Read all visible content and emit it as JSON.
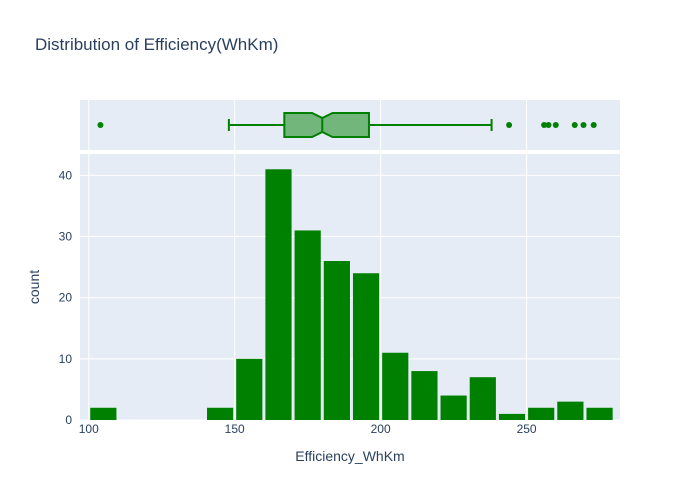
{
  "chart_data": {
    "title": "Distribution of Efficiency(WhKm)",
    "xlabel": "Efficiency_WhKm",
    "ylabel": "count",
    "xlim": [
      97,
      282
    ],
    "ylim": [
      0,
      43.5
    ],
    "grid": true,
    "histogram": {
      "type": "bar",
      "bin_width": 10,
      "bins": [
        {
          "start": 100,
          "end": 110,
          "count": 2
        },
        {
          "start": 140,
          "end": 150,
          "count": 2
        },
        {
          "start": 150,
          "end": 160,
          "count": 10
        },
        {
          "start": 160,
          "end": 170,
          "count": 41
        },
        {
          "start": 170,
          "end": 180,
          "count": 31
        },
        {
          "start": 180,
          "end": 190,
          "count": 26
        },
        {
          "start": 190,
          "end": 200,
          "count": 24
        },
        {
          "start": 200,
          "end": 210,
          "count": 11
        },
        {
          "start": 210,
          "end": 220,
          "count": 8
        },
        {
          "start": 220,
          "end": 230,
          "count": 4
        },
        {
          "start": 230,
          "end": 240,
          "count": 7
        },
        {
          "start": 240,
          "end": 250,
          "count": 1
        },
        {
          "start": 250,
          "end": 260,
          "count": 2
        },
        {
          "start": 260,
          "end": 270,
          "count": 3
        },
        {
          "start": 270,
          "end": 280,
          "count": 2
        }
      ],
      "color": "#008000"
    },
    "boxplot": {
      "type": "box",
      "lower_fence": 148,
      "q1": 167,
      "median": 180,
      "notch_low": 176.5,
      "notch_high": 183.5,
      "q3": 196,
      "upper_fence": 238,
      "outliers": [
        104,
        244,
        256,
        257.5,
        260,
        266.5,
        269.5,
        273
      ],
      "line_color": "#008000",
      "fill_color": "rgba(0,128,0,0.5)"
    },
    "xticks": [
      100,
      150,
      200,
      250
    ],
    "yticks": [
      0,
      10,
      20,
      30,
      40
    ]
  },
  "colors": {
    "plot_bg": "#e5ecf6",
    "grid": "#ffffff",
    "text": "#2a3f5f"
  }
}
